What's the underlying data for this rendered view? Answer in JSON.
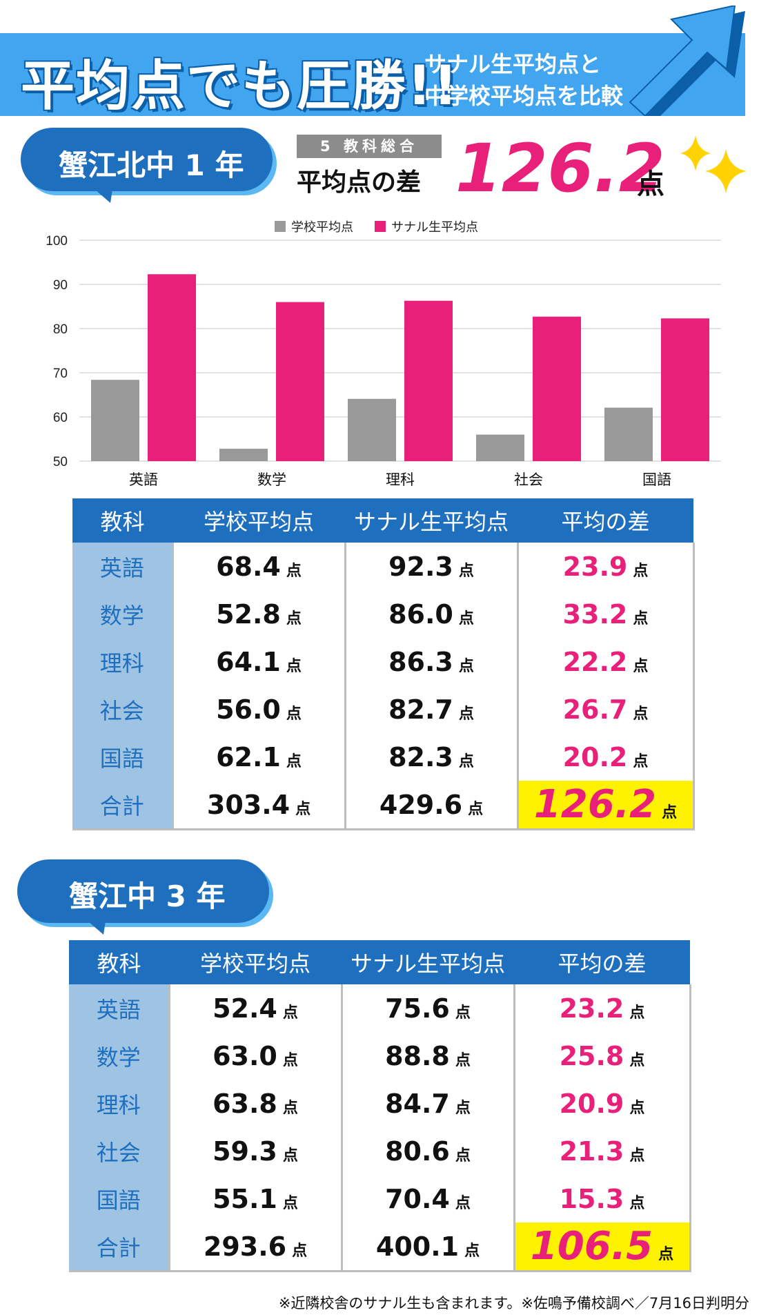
{
  "header": {
    "title": "平均点でも圧勝!!",
    "subtitle_line1": "サナル生平均点と",
    "subtitle_line2": "中学校平均点を比較"
  },
  "colors": {
    "banner": "#42a5ef",
    "pill": "#1f6fbf",
    "school": "#999999",
    "sanaru": "#e8207a",
    "highlight": "#fff200"
  },
  "section1": {
    "label": "蟹江北中 1 年",
    "summary_tag": "5 教科総合",
    "summary_label": "平均点の差",
    "summary_value": "126.2",
    "summary_unit": "点"
  },
  "chart_data": {
    "type": "bar",
    "categories": [
      "英語",
      "数学",
      "理科",
      "社会",
      "国語"
    ],
    "series": [
      {
        "name": "学校平均点",
        "values": [
          68.4,
          52.8,
          64.1,
          56.0,
          62.1
        ],
        "color": "#999999"
      },
      {
        "name": "サナル生平均点",
        "values": [
          92.3,
          86.0,
          86.3,
          82.7,
          82.3
        ],
        "color": "#e8207a"
      }
    ],
    "ylim": [
      50,
      100
    ],
    "yticks": [
      50,
      60,
      70,
      80,
      90,
      100
    ],
    "grid": true,
    "legend": "top-center"
  },
  "table_headers": [
    "教科",
    "学校平均点",
    "サナル生平均点",
    "平均の差"
  ],
  "unit": "点",
  "table1": {
    "rows": [
      {
        "subject": "英語",
        "school": "68.4",
        "sanaru": "92.3",
        "diff": "23.9"
      },
      {
        "subject": "数学",
        "school": "52.8",
        "sanaru": "86.0",
        "diff": "33.2"
      },
      {
        "subject": "理科",
        "school": "64.1",
        "sanaru": "86.3",
        "diff": "22.2"
      },
      {
        "subject": "社会",
        "school": "56.0",
        "sanaru": "82.7",
        "diff": "26.7"
      },
      {
        "subject": "国語",
        "school": "62.1",
        "sanaru": "82.3",
        "diff": "20.2"
      },
      {
        "subject": "合計",
        "school": "303.4",
        "sanaru": "429.6",
        "diff": "126.2"
      }
    ]
  },
  "section2": {
    "label": "蟹江中 3 年"
  },
  "table2": {
    "rows": [
      {
        "subject": "英語",
        "school": "52.4",
        "sanaru": "75.6",
        "diff": "23.2"
      },
      {
        "subject": "数学",
        "school": "63.0",
        "sanaru": "88.8",
        "diff": "25.8"
      },
      {
        "subject": "理科",
        "school": "63.8",
        "sanaru": "84.7",
        "diff": "20.9"
      },
      {
        "subject": "社会",
        "school": "59.3",
        "sanaru": "80.6",
        "diff": "21.3"
      },
      {
        "subject": "国語",
        "school": "55.1",
        "sanaru": "70.4",
        "diff": "15.3"
      },
      {
        "subject": "合計",
        "school": "293.6",
        "sanaru": "400.1",
        "diff": "106.5"
      }
    ]
  },
  "footnote": "※近隣校舎のサナル生も含まれます。※佐鳴予備校調べ／7月16日判明分"
}
